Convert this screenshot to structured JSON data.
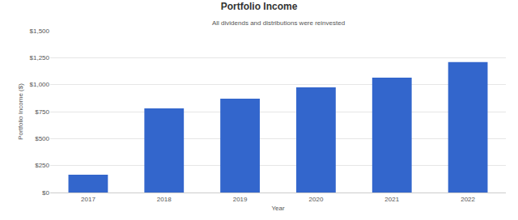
{
  "chart_data": {
    "type": "bar",
    "title": "Portfolio Income",
    "subtitle": "All dividends and distributions were reinvested",
    "x_label": "Year",
    "y_label": "Portfolio Income ($)",
    "categories": [
      "2017",
      "2018",
      "2019",
      "2020",
      "2021",
      "2022"
    ],
    "values": [
      165,
      780,
      870,
      975,
      1065,
      1210
    ],
    "color": "#3366cc",
    "ylim": [
      0,
      1500
    ],
    "yticks": [
      {
        "value": 0,
        "label": "$0"
      },
      {
        "value": 250,
        "label": "$250"
      },
      {
        "value": 500,
        "label": "$500"
      },
      {
        "value": 750,
        "label": "$750"
      },
      {
        "value": 1000,
        "label": "$1,000"
      },
      {
        "value": 1250,
        "label": "$1,250"
      },
      {
        "value": 1500,
        "label": "$1,500"
      }
    ],
    "grid": true
  }
}
